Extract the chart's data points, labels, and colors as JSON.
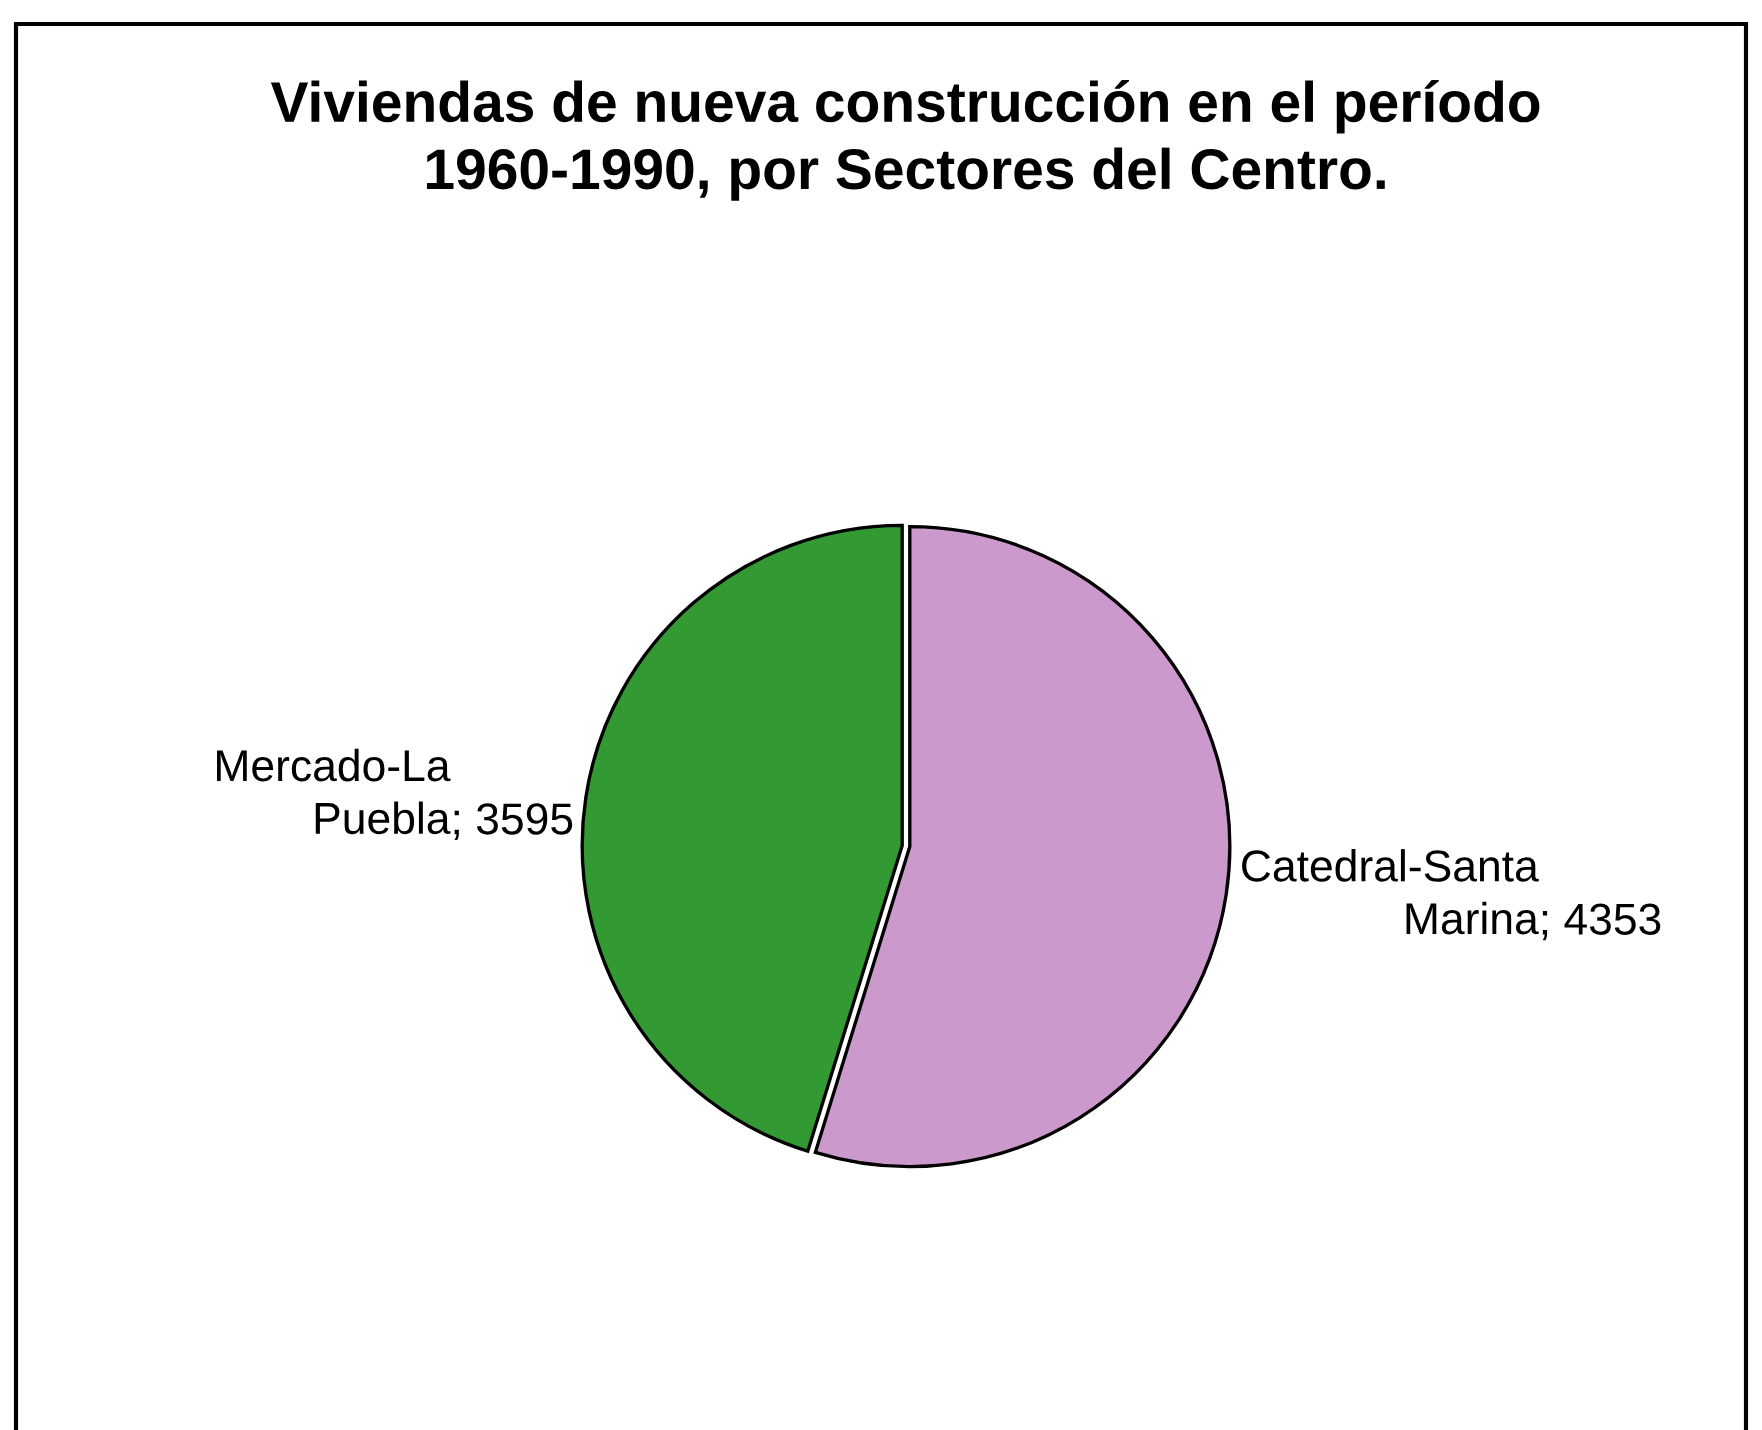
{
  "chart_data": {
    "type": "pie",
    "title": "Viviendas de nueva construcción en el período 1960-1990, por Sectores del Centro.",
    "categories": [
      "Catedral-Santa Marina",
      "Mercado-La Puebla"
    ],
    "values": [
      4353,
      3595
    ],
    "value_labels": [
      "; 4353",
      "; 3595"
    ],
    "colors": [
      "#cc99cc",
      "#339933"
    ]
  }
}
